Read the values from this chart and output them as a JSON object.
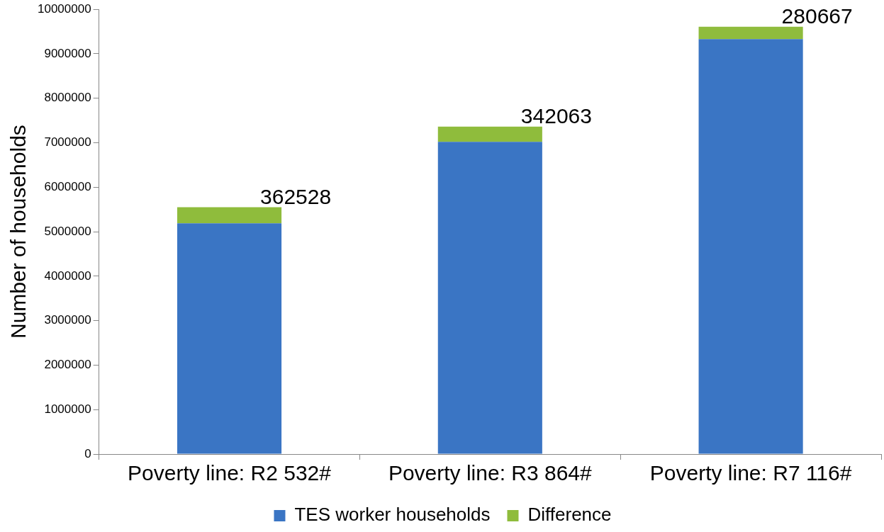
{
  "chart_data": {
    "type": "bar",
    "stacked": true,
    "ylabel": "Number of households",
    "categories": [
      "Poverty line: R2 532#",
      "Poverty line: R3 864#",
      "Poverty line: R7 116#"
    ],
    "series": [
      {
        "name": "TES worker households",
        "color": "#3a75c4",
        "values": [
          5190000,
          7020000,
          9330000
        ]
      },
      {
        "name": "Difference",
        "color": "#8fbc3c",
        "values": [
          362528,
          342063,
          280667
        ],
        "value_labels": [
          "362528",
          "342063",
          "280667"
        ]
      }
    ],
    "ylim": [
      0,
      10000000
    ],
    "yticks": [
      0,
      1000000,
      2000000,
      3000000,
      4000000,
      5000000,
      6000000,
      7000000,
      8000000,
      9000000,
      10000000
    ],
    "grid": false,
    "legend": "bottom"
  }
}
